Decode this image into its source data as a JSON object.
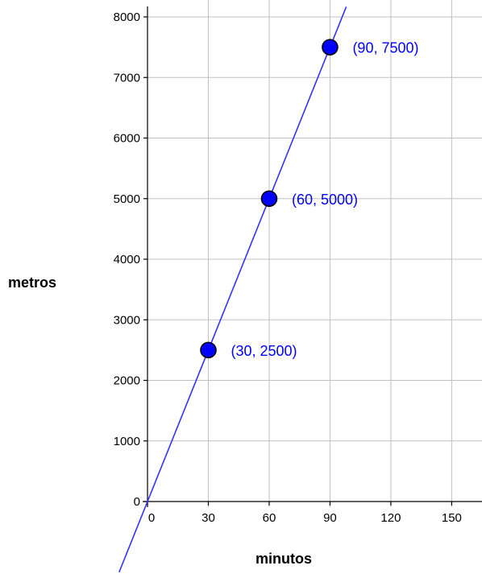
{
  "chart_data": {
    "type": "scatter",
    "xlabel": "minutos",
    "ylabel": "metros",
    "xlim": [
      0,
      160
    ],
    "ylim": [
      0,
      8000
    ],
    "x_ticks": [
      0,
      30,
      60,
      90,
      120,
      150
    ],
    "y_ticks": [
      0,
      1000,
      2000,
      3000,
      4000,
      5000,
      6000,
      7000,
      8000
    ],
    "x_tick_labels": [
      "0",
      "30",
      "60",
      "90",
      "120",
      "150"
    ],
    "y_tick_labels": [
      "0",
      "1000",
      "2000",
      "3000",
      "4000",
      "5000",
      "6000",
      "7000",
      "8000"
    ],
    "grid": true,
    "line": {
      "slope": 83.333,
      "intercept": 0
    },
    "points": [
      {
        "x": 30,
        "y": 2500,
        "label": "(30, 2500)"
      },
      {
        "x": 60,
        "y": 5000,
        "label": "(60, 5000)"
      },
      {
        "x": 90,
        "y": 7500,
        "label": "(90, 7500)"
      }
    ],
    "colors": {
      "line": "#3333ff",
      "point_fill": "#0000ff",
      "point_label": "#0000ff",
      "grid": "#c0c0c0",
      "axis": "#000000"
    }
  }
}
